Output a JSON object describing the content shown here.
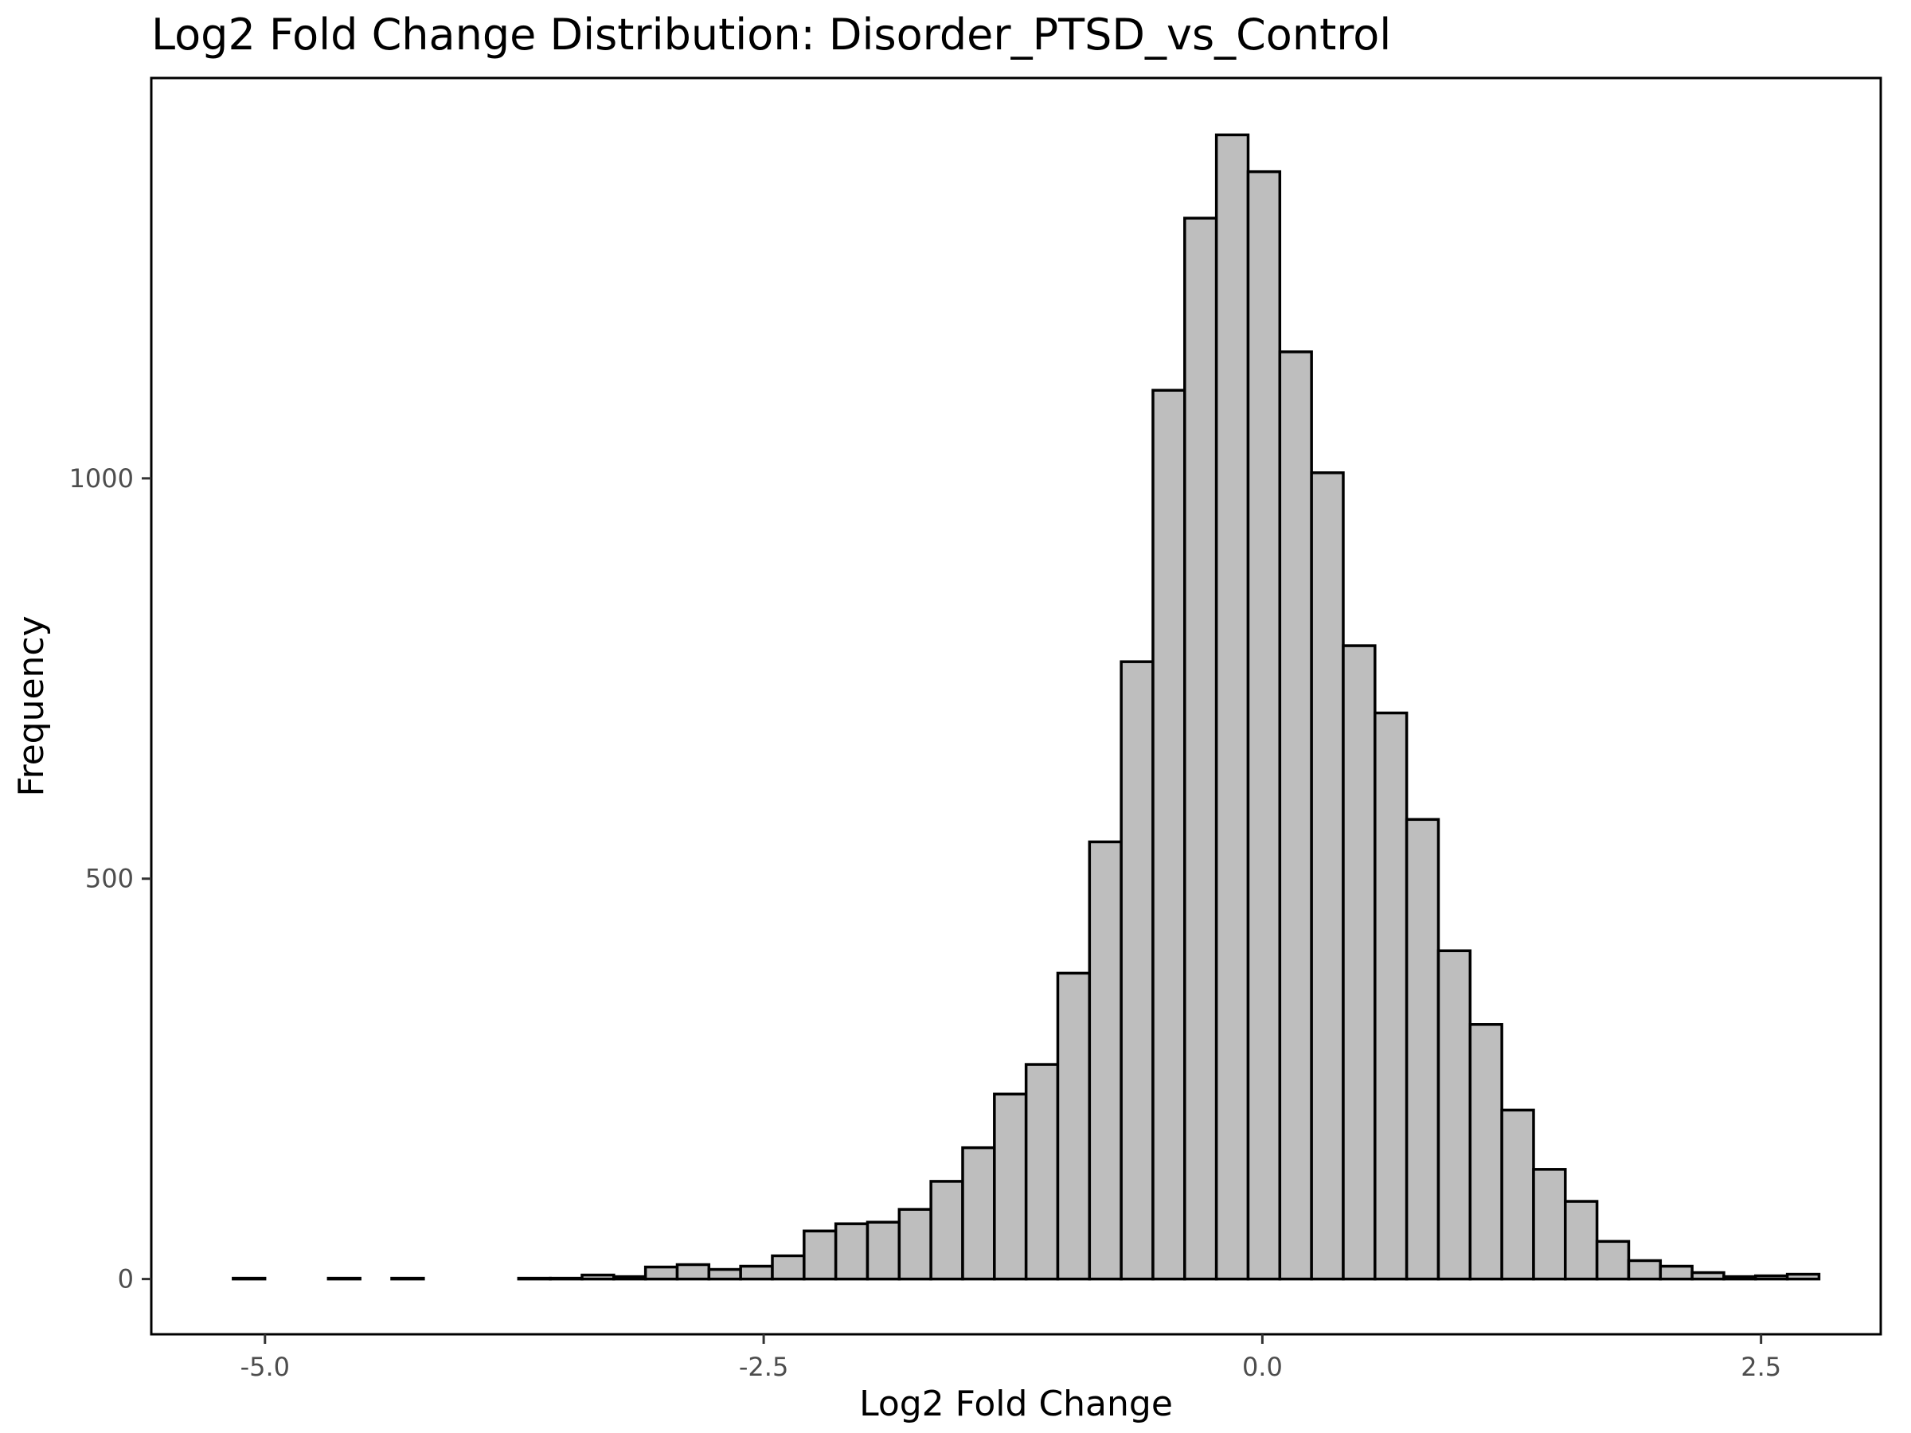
{
  "chart_data": {
    "type": "bar",
    "title": "Log2 Fold Change Distribution: Disorder_PTSD_vs_Control",
    "xlabel": "Log2 Fold Change",
    "ylabel": "Frequency",
    "bin_width": 0.159,
    "bin_centers": [
      -5.08,
      -4.921,
      -4.762,
      -4.603,
      -4.444,
      -4.285,
      -4.126,
      -3.967,
      -3.808,
      -3.649,
      -3.49,
      -3.331,
      -3.172,
      -3.013,
      -2.854,
      -2.695,
      -2.536,
      -2.377,
      -2.218,
      -2.059,
      -1.9,
      -1.741,
      -1.582,
      -1.423,
      -1.264,
      -1.105,
      -0.946,
      -0.787,
      -0.628,
      -0.469,
      -0.31,
      -0.151,
      0.008,
      0.167,
      0.326,
      0.485,
      0.644,
      0.803,
      0.962,
      1.121,
      1.28,
      1.439,
      1.598,
      1.757,
      1.916,
      2.075,
      2.234,
      2.393,
      2.552,
      2.711
    ],
    "values": [
      1,
      0,
      0,
      1,
      0,
      1,
      0,
      0,
      0,
      1,
      1,
      5,
      3,
      15,
      18,
      12,
      16,
      29,
      60,
      69,
      71,
      87,
      122,
      164,
      231,
      268,
      382,
      546,
      771,
      1110,
      1325,
      1429,
      1383,
      1158,
      1007,
      791,
      707,
      574,
      410,
      318,
      211,
      137,
      97,
      47,
      23,
      16,
      8,
      3,
      4,
      6
    ],
    "xlim": [
      -5.57,
      3.1
    ],
    "ylim": [
      -69,
      1500
    ],
    "x_ticks": [
      -5.0,
      -2.5,
      0.0,
      2.5
    ],
    "x_tick_labels": [
      "-5.0",
      "-2.5",
      "0.0",
      "2.5"
    ],
    "y_ticks": [
      0,
      500,
      1000
    ],
    "y_tick_labels": [
      "0",
      "500",
      "1000"
    ],
    "grid": false,
    "bar_fill": "#bebebe",
    "bar_stroke": "#000000"
  }
}
